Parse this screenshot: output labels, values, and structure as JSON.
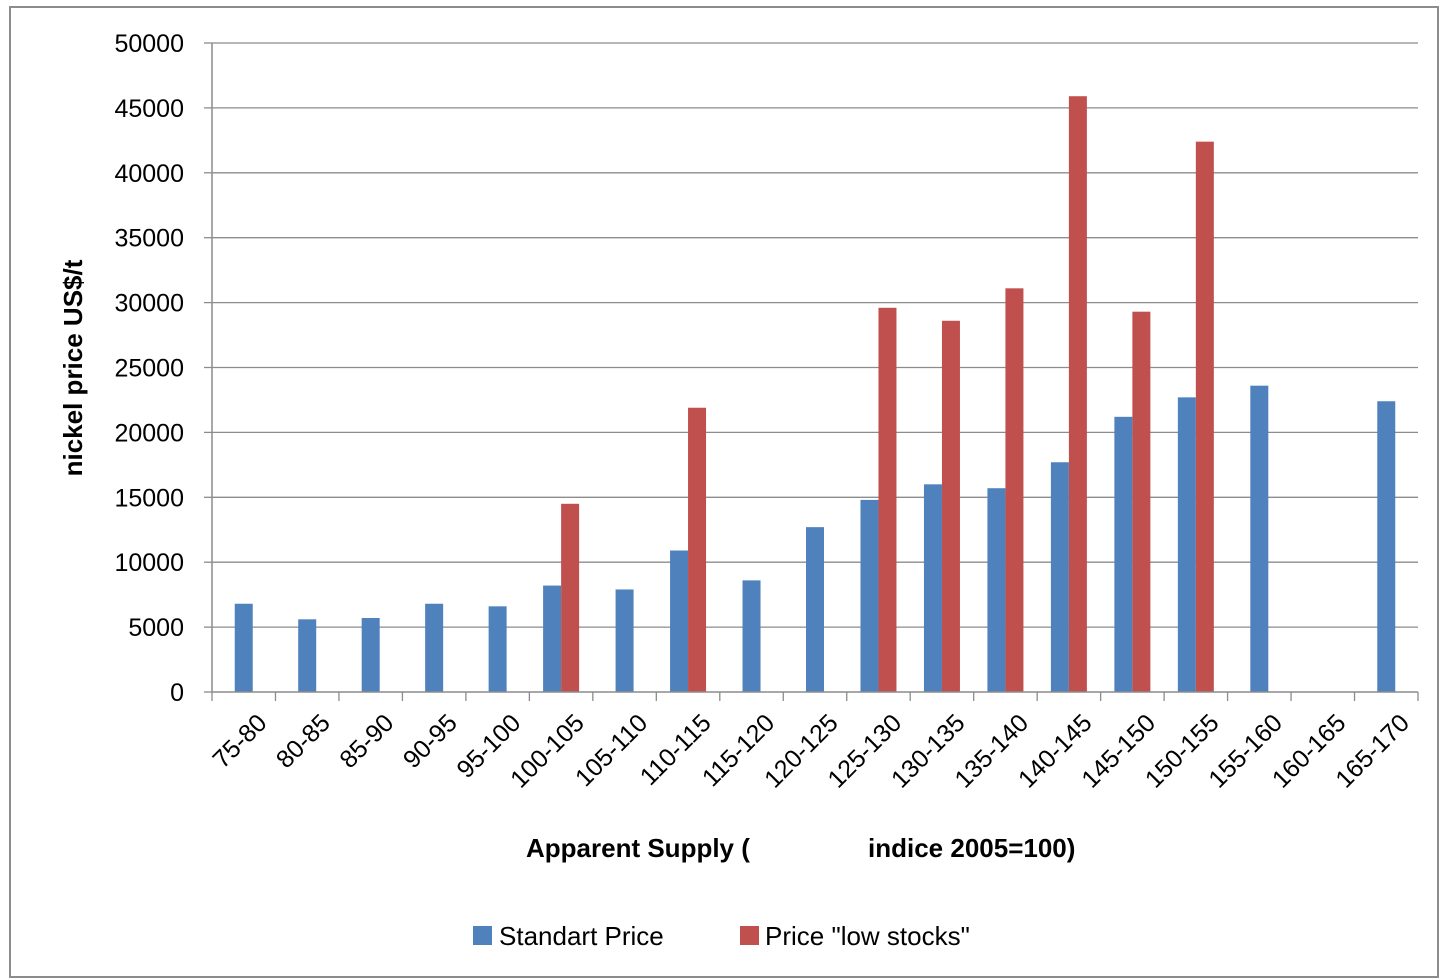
{
  "chart_data": {
    "type": "bar",
    "ylabel": "nickel price US$/t",
    "xlabel": "Apparent Supply (",
    "xlabel_suffix": "indice 2005=100)",
    "ylim": [
      0,
      50000
    ],
    "yticks": [
      "0",
      "5000",
      "10000",
      "15000",
      "20000",
      "25000",
      "30000",
      "35000",
      "40000",
      "45000",
      "50000"
    ],
    "grid": true,
    "legend_position": "bottom",
    "categories": [
      "75-80",
      "80-85",
      "85-90",
      "90-95",
      "95-100",
      "100-105",
      "105-110",
      "110-115",
      "115-120",
      "120-125",
      "125-130",
      "130-135",
      "135-140",
      "140-145",
      "145-150",
      "150-155",
      "155-160",
      "160-165",
      "165-170"
    ],
    "series": [
      {
        "name": "Standart Price",
        "color": "#4f81bd",
        "values": [
          6800,
          5600,
          5700,
          6800,
          6600,
          8200,
          7900,
          10900,
          8600,
          12700,
          14800,
          16000,
          15700,
          17700,
          21200,
          22700,
          23600,
          null,
          22400
        ]
      },
      {
        "name": "Price \"low stocks\"",
        "color": "#c0504d",
        "values": [
          null,
          null,
          null,
          null,
          null,
          14500,
          null,
          21900,
          null,
          null,
          29600,
          28600,
          31100,
          45900,
          29300,
          42400,
          null,
          null,
          null
        ]
      }
    ]
  }
}
